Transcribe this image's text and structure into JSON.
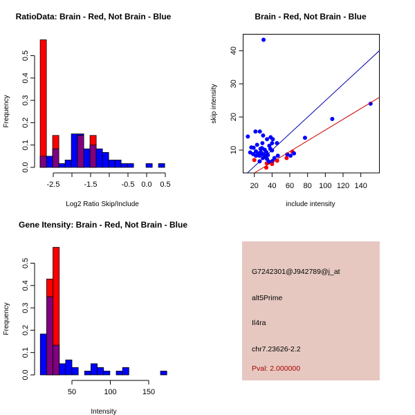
{
  "chart_data": [
    {
      "type": "bar",
      "title": "RatioData: Brain - Red, Not Brain - Blue",
      "xlabel": "Log2 Ratio Skip/Include",
      "ylabel": "Frequency",
      "bin_start": -2.85,
      "bin_width": 0.1667,
      "xticks": [
        -2.5,
        -2.0,
        -1.5,
        -1.0,
        -0.5,
        0.0,
        0.5
      ],
      "xtick_labels": [
        "-2.5",
        "",
        "-1.5",
        "",
        "-0.5",
        "0.0",
        "0.5"
      ],
      "yticks": [
        0,
        0.1,
        0.2,
        0.3,
        0.4,
        0.5
      ],
      "ytick_labels": [
        "0.0",
        "0.1",
        "0.2",
        "0.3",
        "0.4",
        "0.5"
      ],
      "series": [
        {
          "name": "Not Brain",
          "color": "#0000ff",
          "values": [
            0.05,
            0.05,
            0.083,
            0.017,
            0.033,
            0.15,
            0.15,
            0.083,
            0.1,
            0.083,
            0.067,
            0.033,
            0.033,
            0.017,
            0.017,
            0,
            0,
            0.017,
            0,
            0.017
          ]
        },
        {
          "name": "Brain",
          "color": "#ff0000",
          "values": [
            0.571,
            0,
            0.143,
            0,
            0,
            0,
            0.143,
            0,
            0.143,
            0,
            0,
            0,
            0,
            0,
            0,
            0,
            0,
            0,
            0,
            0
          ]
        }
      ],
      "overlap_color": "#800080"
    },
    {
      "type": "scatter",
      "title": "Brain - Red, Not Brain - Blue",
      "xlabel": "include intensity",
      "ylabel": "skip intensity",
      "xlim": [
        7.5,
        160.7
      ],
      "ylim": [
        3.1,
        45
      ],
      "xticks": [
        20,
        40,
        60,
        80,
        100,
        120,
        140
      ],
      "xtick_labels": [
        "20",
        "40",
        "60",
        "80",
        "100",
        "120",
        "140"
      ],
      "yticks": [
        10,
        20,
        30,
        40
      ],
      "ytick_labels": [
        "10",
        "20",
        "30",
        "40"
      ],
      "series": [
        {
          "name": "Not Brain",
          "color": "#0000ff",
          "fit": {
            "slope": 0.248,
            "intercept": 0.1
          },
          "points": [
            [
              30.4,
              43.3
            ],
            [
              12.7,
              14.1
            ],
            [
              21.3,
              15.6
            ],
            [
              26.2,
              15.6
            ],
            [
              29.9,
              14.4
            ],
            [
              38.4,
              13.9
            ],
            [
              40.8,
              13.3
            ],
            [
              34.3,
              13.3
            ],
            [
              29.1,
              12.1
            ],
            [
              40,
              12.1
            ],
            [
              45.5,
              12.1
            ],
            [
              77.1,
              13.7
            ],
            [
              107.8,
              19.4
            ],
            [
              151,
              24
            ],
            [
              16.6,
              10.8
            ],
            [
              19.2,
              10.7
            ],
            [
              23.1,
              11.6
            ],
            [
              27,
              10.4
            ],
            [
              28.6,
              10.6
            ],
            [
              15.3,
              9.3
            ],
            [
              18.7,
              8.8
            ],
            [
              21.8,
              9.6
            ],
            [
              24.4,
              9
            ],
            [
              27.3,
              9.4
            ],
            [
              30.9,
              8.8
            ],
            [
              33.5,
              9.4
            ],
            [
              35.3,
              8.5
            ],
            [
              36.9,
              11.3
            ],
            [
              38,
              10.4
            ],
            [
              40,
              9.9
            ],
            [
              42.6,
              7.6
            ],
            [
              46.5,
              8.3
            ],
            [
              57.1,
              8.7
            ],
            [
              60.8,
              8.3
            ],
            [
              64.7,
              9
            ],
            [
              26,
              6.6
            ],
            [
              36.4,
              6.5
            ],
            [
              40.5,
              6.7
            ],
            [
              29.6,
              7.6
            ],
            [
              32.2,
              8
            ],
            [
              21.8,
              8.3
            ],
            [
              34.3,
              7.3
            ],
            [
              31.7,
              10.1
            ],
            [
              25.7,
              8.3
            ],
            [
              28.3,
              8.8
            ]
          ]
        },
        {
          "name": "Brain",
          "color": "#ff0000",
          "fit": {
            "slope": 0.162,
            "intercept": -0.15
          },
          "points": [
            [
              20,
              7
            ],
            [
              33.5,
              4.7
            ],
            [
              34,
              6
            ],
            [
              40,
              5.8
            ],
            [
              45.7,
              6.8
            ],
            [
              56.4,
              7.6
            ],
            [
              62.9,
              9.5
            ]
          ]
        }
      ]
    },
    {
      "type": "bar",
      "title": "Gene Itensity: Brain - Red, Not Brain - Blue",
      "xlabel": "Intensity",
      "ylabel": "Frequency",
      "bin_start": 8.8,
      "bin_width": 8.24,
      "xticks": [
        50,
        100,
        150
      ],
      "xtick_labels": [
        "50",
        "100",
        "150"
      ],
      "yticks": [
        0,
        0.1,
        0.2,
        0.3,
        0.4,
        0.5
      ],
      "ytick_labels": [
        "0.0",
        "0.1",
        "0.2",
        "0.3",
        "0.4",
        "0.5"
      ],
      "series": [
        {
          "name": "Not Brain",
          "color": "#0000ff",
          "values": [
            0.183,
            0.35,
            0.133,
            0.05,
            0.067,
            0.033,
            0,
            0.017,
            0.05,
            0.033,
            0.017,
            0,
            0.017,
            0.033,
            0,
            0,
            0,
            0,
            0,
            0.017
          ]
        },
        {
          "name": "Brain",
          "color": "#ff0000",
          "values": [
            0,
            0.429,
            0.571,
            0,
            0,
            0,
            0,
            0,
            0,
            0,
            0,
            0,
            0,
            0,
            0,
            0,
            0,
            0,
            0,
            0
          ]
        }
      ],
      "overlap_color": "#800080"
    }
  ],
  "info_panel": {
    "background": "#e6c8c0",
    "probe_id": "G7242301@J942789@j_at",
    "event_type": "alt5Prime",
    "gene": "Il4ra",
    "location": "chr7.23626-2.2",
    "pval": "Pval: 2.000000",
    "pval_color": "#aa0000"
  }
}
